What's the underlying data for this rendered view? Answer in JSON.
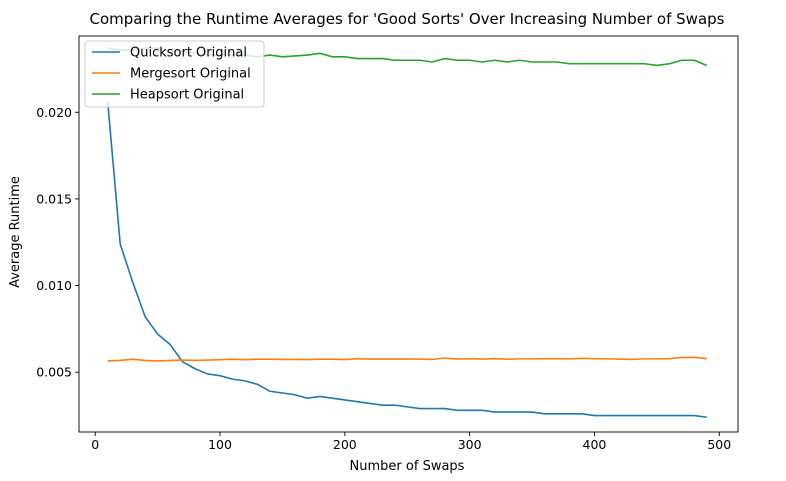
{
  "chart_data": {
    "type": "line",
    "title": "Comparing the Runtime Averages for 'Good Sorts' Over Increasing Number of Swaps",
    "xlabel": "Number of Swaps",
    "ylabel": "Average Runtime",
    "xlim": [
      -13,
      515
    ],
    "ylim": [
      0.00155,
      0.0244
    ],
    "xticks": [
      0,
      100,
      200,
      300,
      400,
      500
    ],
    "xtick_labels": [
      "0",
      "100",
      "200",
      "300",
      "400",
      "500"
    ],
    "yticks": [
      0.005,
      0.01,
      0.015,
      0.02
    ],
    "ytick_labels": [
      "0.005",
      "0.010",
      "0.015",
      "0.020"
    ],
    "grid": false,
    "legend_position": "top-left",
    "x": [
      10,
      20,
      30,
      40,
      50,
      60,
      70,
      80,
      90,
      100,
      110,
      120,
      130,
      140,
      150,
      160,
      170,
      180,
      190,
      200,
      210,
      220,
      230,
      240,
      250,
      260,
      270,
      280,
      290,
      300,
      310,
      320,
      330,
      340,
      350,
      360,
      370,
      380,
      390,
      400,
      410,
      420,
      430,
      440,
      450,
      460,
      470,
      480,
      490
    ],
    "series": [
      {
        "name": "Quicksort Original",
        "color": "#1f77b4",
        "values": [
          0.0206,
          0.0124,
          0.0102,
          0.0082,
          0.0072,
          0.0066,
          0.0056,
          0.0052,
          0.0049,
          0.0048,
          0.0046,
          0.0045,
          0.0043,
          0.0039,
          0.0038,
          0.0037,
          0.0035,
          0.0036,
          0.0035,
          0.0034,
          0.0033,
          0.0032,
          0.0031,
          0.0031,
          0.003,
          0.0029,
          0.0029,
          0.0029,
          0.0028,
          0.0028,
          0.0028,
          0.0027,
          0.0027,
          0.0027,
          0.0027,
          0.0026,
          0.0026,
          0.0026,
          0.0026,
          0.0025,
          0.0025,
          0.0025,
          0.0025,
          0.0025,
          0.0025,
          0.0025,
          0.0025,
          0.0025,
          0.0024
        ]
      },
      {
        "name": "Mergesort Original",
        "color": "#ff7f0e",
        "values": [
          0.00565,
          0.00568,
          0.00575,
          0.00568,
          0.00565,
          0.00568,
          0.0057,
          0.00568,
          0.0057,
          0.00572,
          0.00575,
          0.00572,
          0.00575,
          0.00575,
          0.00574,
          0.00574,
          0.00573,
          0.00575,
          0.00575,
          0.00573,
          0.00578,
          0.00576,
          0.00576,
          0.00576,
          0.00576,
          0.00576,
          0.00574,
          0.00582,
          0.00576,
          0.00578,
          0.00576,
          0.00578,
          0.00575,
          0.00577,
          0.00577,
          0.00578,
          0.00578,
          0.00577,
          0.0058,
          0.00578,
          0.00577,
          0.00576,
          0.00574,
          0.00577,
          0.00577,
          0.00578,
          0.00585,
          0.00586,
          0.00578
        ]
      },
      {
        "name": "Heapsort Original",
        "color": "#2ca02c",
        "values": [
          0.0237,
          0.0236,
          0.0236,
          0.0237,
          0.0237,
          0.0235,
          0.0235,
          0.0234,
          0.0233,
          0.0233,
          0.0233,
          0.0233,
          0.0232,
          0.0233,
          0.0232,
          0.02325,
          0.0233,
          0.0234,
          0.0232,
          0.0232,
          0.0231,
          0.0231,
          0.0231,
          0.023,
          0.023,
          0.023,
          0.0229,
          0.0231,
          0.023,
          0.023,
          0.0229,
          0.023,
          0.0229,
          0.023,
          0.0229,
          0.0229,
          0.0229,
          0.0228,
          0.0228,
          0.0228,
          0.0228,
          0.0228,
          0.0228,
          0.0228,
          0.0227,
          0.0228,
          0.023,
          0.023,
          0.0227
        ]
      }
    ]
  }
}
